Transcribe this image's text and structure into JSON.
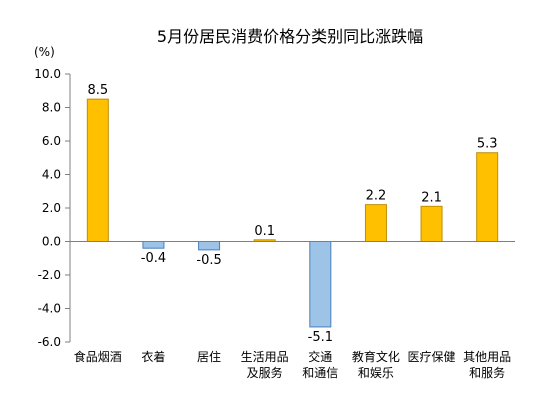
{
  "chart_data": {
    "type": "bar",
    "title": "5月份居民消费价格分类别同比涨跌幅",
    "unit": "(%)",
    "categories": [
      [
        "食品烟酒"
      ],
      [
        "衣着"
      ],
      [
        "居住"
      ],
      [
        "生活用品",
        "及服务"
      ],
      [
        "交通",
        "和通信"
      ],
      [
        "教育文化",
        "和娱乐"
      ],
      [
        "医疗保健"
      ],
      [
        "其他用品",
        "和服务"
      ]
    ],
    "values": [
      8.5,
      -0.4,
      -0.5,
      0.1,
      -5.1,
      2.2,
      2.1,
      5.3
    ],
    "value_labels": [
      "8.5",
      "-0.4",
      "-0.5",
      "0.1",
      "-5.1",
      "2.2",
      "2.1",
      "5.3"
    ],
    "ylim": [
      -6.0,
      10.0
    ],
    "yticks": [
      10.0,
      8.0,
      6.0,
      4.0,
      2.0,
      0.0,
      -2.0,
      -4.0,
      -6.0
    ],
    "ytick_labels": [
      "10.0",
      "8.0",
      "6.0",
      "4.0",
      "2.0",
      "0.0",
      "-2.0",
      "-4.0",
      "-6.0"
    ],
    "grid": false,
    "colors": {
      "positive_fill": "#FFC000",
      "positive_stroke": "#C08E00",
      "negative_fill": "#9DC3E6",
      "negative_stroke": "#4A7EBB",
      "axis": "#7f7f7f"
    }
  }
}
